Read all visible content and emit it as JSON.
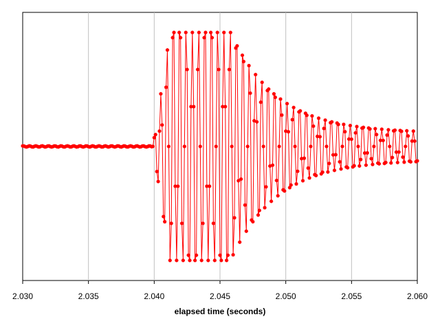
{
  "chart_data": {
    "type": "line",
    "title": "",
    "xlabel": "elapsed time (seconds)",
    "ylabel": "",
    "xlim": [
      2.03,
      2.06
    ],
    "ylim": [
      -1.0,
      1.0
    ],
    "x_ticks": [
      "2.030",
      "2.035",
      "2.040",
      "2.045",
      "2.050",
      "2.055",
      "2.060"
    ],
    "y_tick_labels_shown": false,
    "grid": "vertical",
    "legend": "none",
    "series_color": "#FF0000",
    "marker": "asterisk",
    "sample_interval_s": 0.0001,
    "signal_description": {
      "baseline_level": 0.0,
      "burst_start_s": 2.0399,
      "clip_start_s": 2.0412,
      "clip_level": 0.85,
      "clip_end_s": 2.0458,
      "settle_level": 0.1,
      "approx_period_s": 0.00048
    },
    "series": [
      {
        "values_note": "sampled waveform; points generated from signal_description"
      }
    ]
  }
}
